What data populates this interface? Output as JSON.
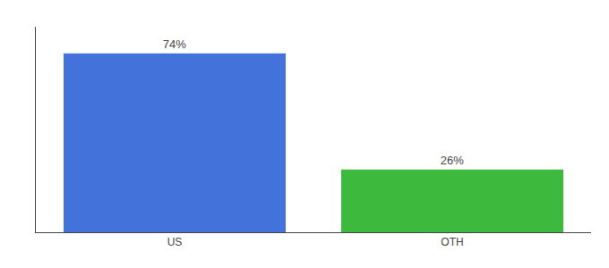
{
  "chart_data": {
    "type": "bar",
    "categories": [
      "US",
      "OTH"
    ],
    "values": [
      74,
      26
    ],
    "value_labels": [
      "74%",
      "26%"
    ],
    "colors": [
      "#4472db",
      "#3dba3d"
    ],
    "ylim": [
      0,
      85
    ],
    "yticks": [],
    "data_labels": true,
    "tick_labels": "x",
    "grid": false
  }
}
